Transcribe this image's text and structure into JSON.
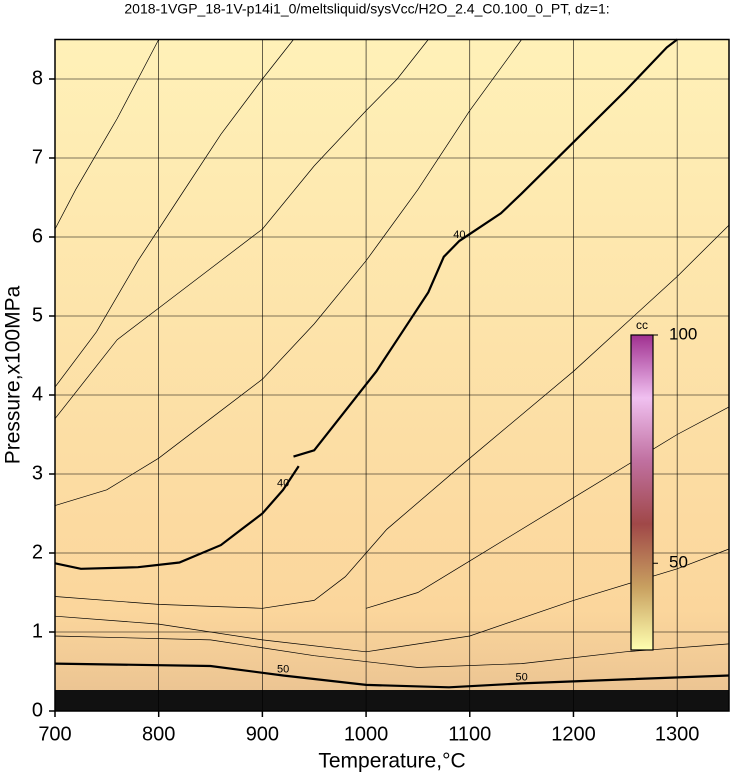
{
  "chart_data": {
    "type": "contour",
    "title": "2018-1VGP_18-1V-p14i1_0/meltsliquid/sysVcc/H2O_2.4_C0.100_0_PT, dz=1:",
    "x_label": "Temperature,°C",
    "y_label": "Pressure,x100MPa",
    "xlim": [
      700,
      1350
    ],
    "ylim": [
      0,
      8.5
    ],
    "xticks": [
      700,
      800,
      900,
      1000,
      1100,
      1200,
      1300
    ],
    "yticks": [
      0,
      1,
      2,
      3,
      4,
      5,
      6,
      7,
      8
    ],
    "grid": true,
    "contours": [
      {
        "label": "40",
        "bold": true,
        "x": [
          700,
          725,
          780,
          820,
          860,
          880,
          900,
          920,
          935,
          null,
          930,
          950,
          980,
          1010,
          1030,
          1060,
          1075,
          1090,
          1130,
          1150,
          1200,
          1250,
          1290,
          1300
        ],
        "y": [
          1.87,
          1.8,
          1.82,
          1.88,
          2.1,
          2.3,
          2.5,
          2.8,
          3.1,
          null,
          3.22,
          3.3,
          3.8,
          4.3,
          4.7,
          5.3,
          5.75,
          5.95,
          6.3,
          6.55,
          7.2,
          7.85,
          8.4,
          8.5
        ]
      },
      {
        "label": "50",
        "bold": true,
        "x": [
          700,
          850,
          920,
          1000,
          1080,
          1150,
          1250,
          1350
        ],
        "y": [
          0.6,
          0.57,
          0.45,
          0.33,
          0.3,
          0.35,
          0.4,
          0.45
        ]
      },
      {
        "x": [
          700,
          720,
          760,
          780,
          800
        ],
        "y": [
          6.1,
          6.6,
          7.5,
          8.0,
          8.5
        ]
      },
      {
        "x": [
          700,
          740,
          780,
          820,
          860,
          900,
          930
        ],
        "y": [
          4.1,
          4.8,
          5.7,
          6.5,
          7.3,
          8.0,
          8.5
        ]
      },
      {
        "x": [
          700,
          760,
          800,
          850,
          900,
          950,
          1000,
          1030,
          1060
        ],
        "y": [
          3.7,
          4.7,
          5.1,
          5.6,
          6.1,
          6.9,
          7.6,
          8.0,
          8.5
        ]
      },
      {
        "x": [
          700,
          750,
          800,
          850,
          900,
          950,
          1000,
          1050,
          1100,
          1150
        ],
        "y": [
          2.6,
          2.8,
          3.2,
          3.7,
          4.2,
          4.9,
          5.7,
          6.6,
          7.6,
          8.5
        ]
      },
      {
        "x": [
          700,
          800,
          900,
          950,
          980,
          1000,
          1020,
          1100,
          1200,
          1300,
          1350
        ],
        "y": [
          1.45,
          1.35,
          1.3,
          1.4,
          1.7,
          2.0,
          2.3,
          3.2,
          4.3,
          5.5,
          6.15
        ]
      },
      {
        "x": [
          1000,
          1050,
          1100,
          1200,
          1300,
          1350
        ],
        "y": [
          1.3,
          1.5,
          1.9,
          2.7,
          3.5,
          3.85
        ]
      },
      {
        "x": [
          700,
          800,
          900,
          1000,
          1100,
          1200,
          1300,
          1350
        ],
        "y": [
          1.2,
          1.1,
          0.9,
          0.75,
          0.95,
          1.4,
          1.8,
          2.05
        ]
      },
      {
        "x": [
          700,
          850,
          950,
          1050,
          1150,
          1250,
          1350
        ],
        "y": [
          0.95,
          0.9,
          0.7,
          0.55,
          0.6,
          0.75,
          0.85
        ]
      }
    ],
    "colorbar": {
      "label": "cc",
      "lim": [
        31,
        100
      ],
      "ticks": [
        50,
        100
      ],
      "colors": [
        "#ffffb0",
        "#c8a060",
        "#a04848",
        "#c070a0",
        "#f0c0f0",
        "#a03090"
      ]
    }
  }
}
